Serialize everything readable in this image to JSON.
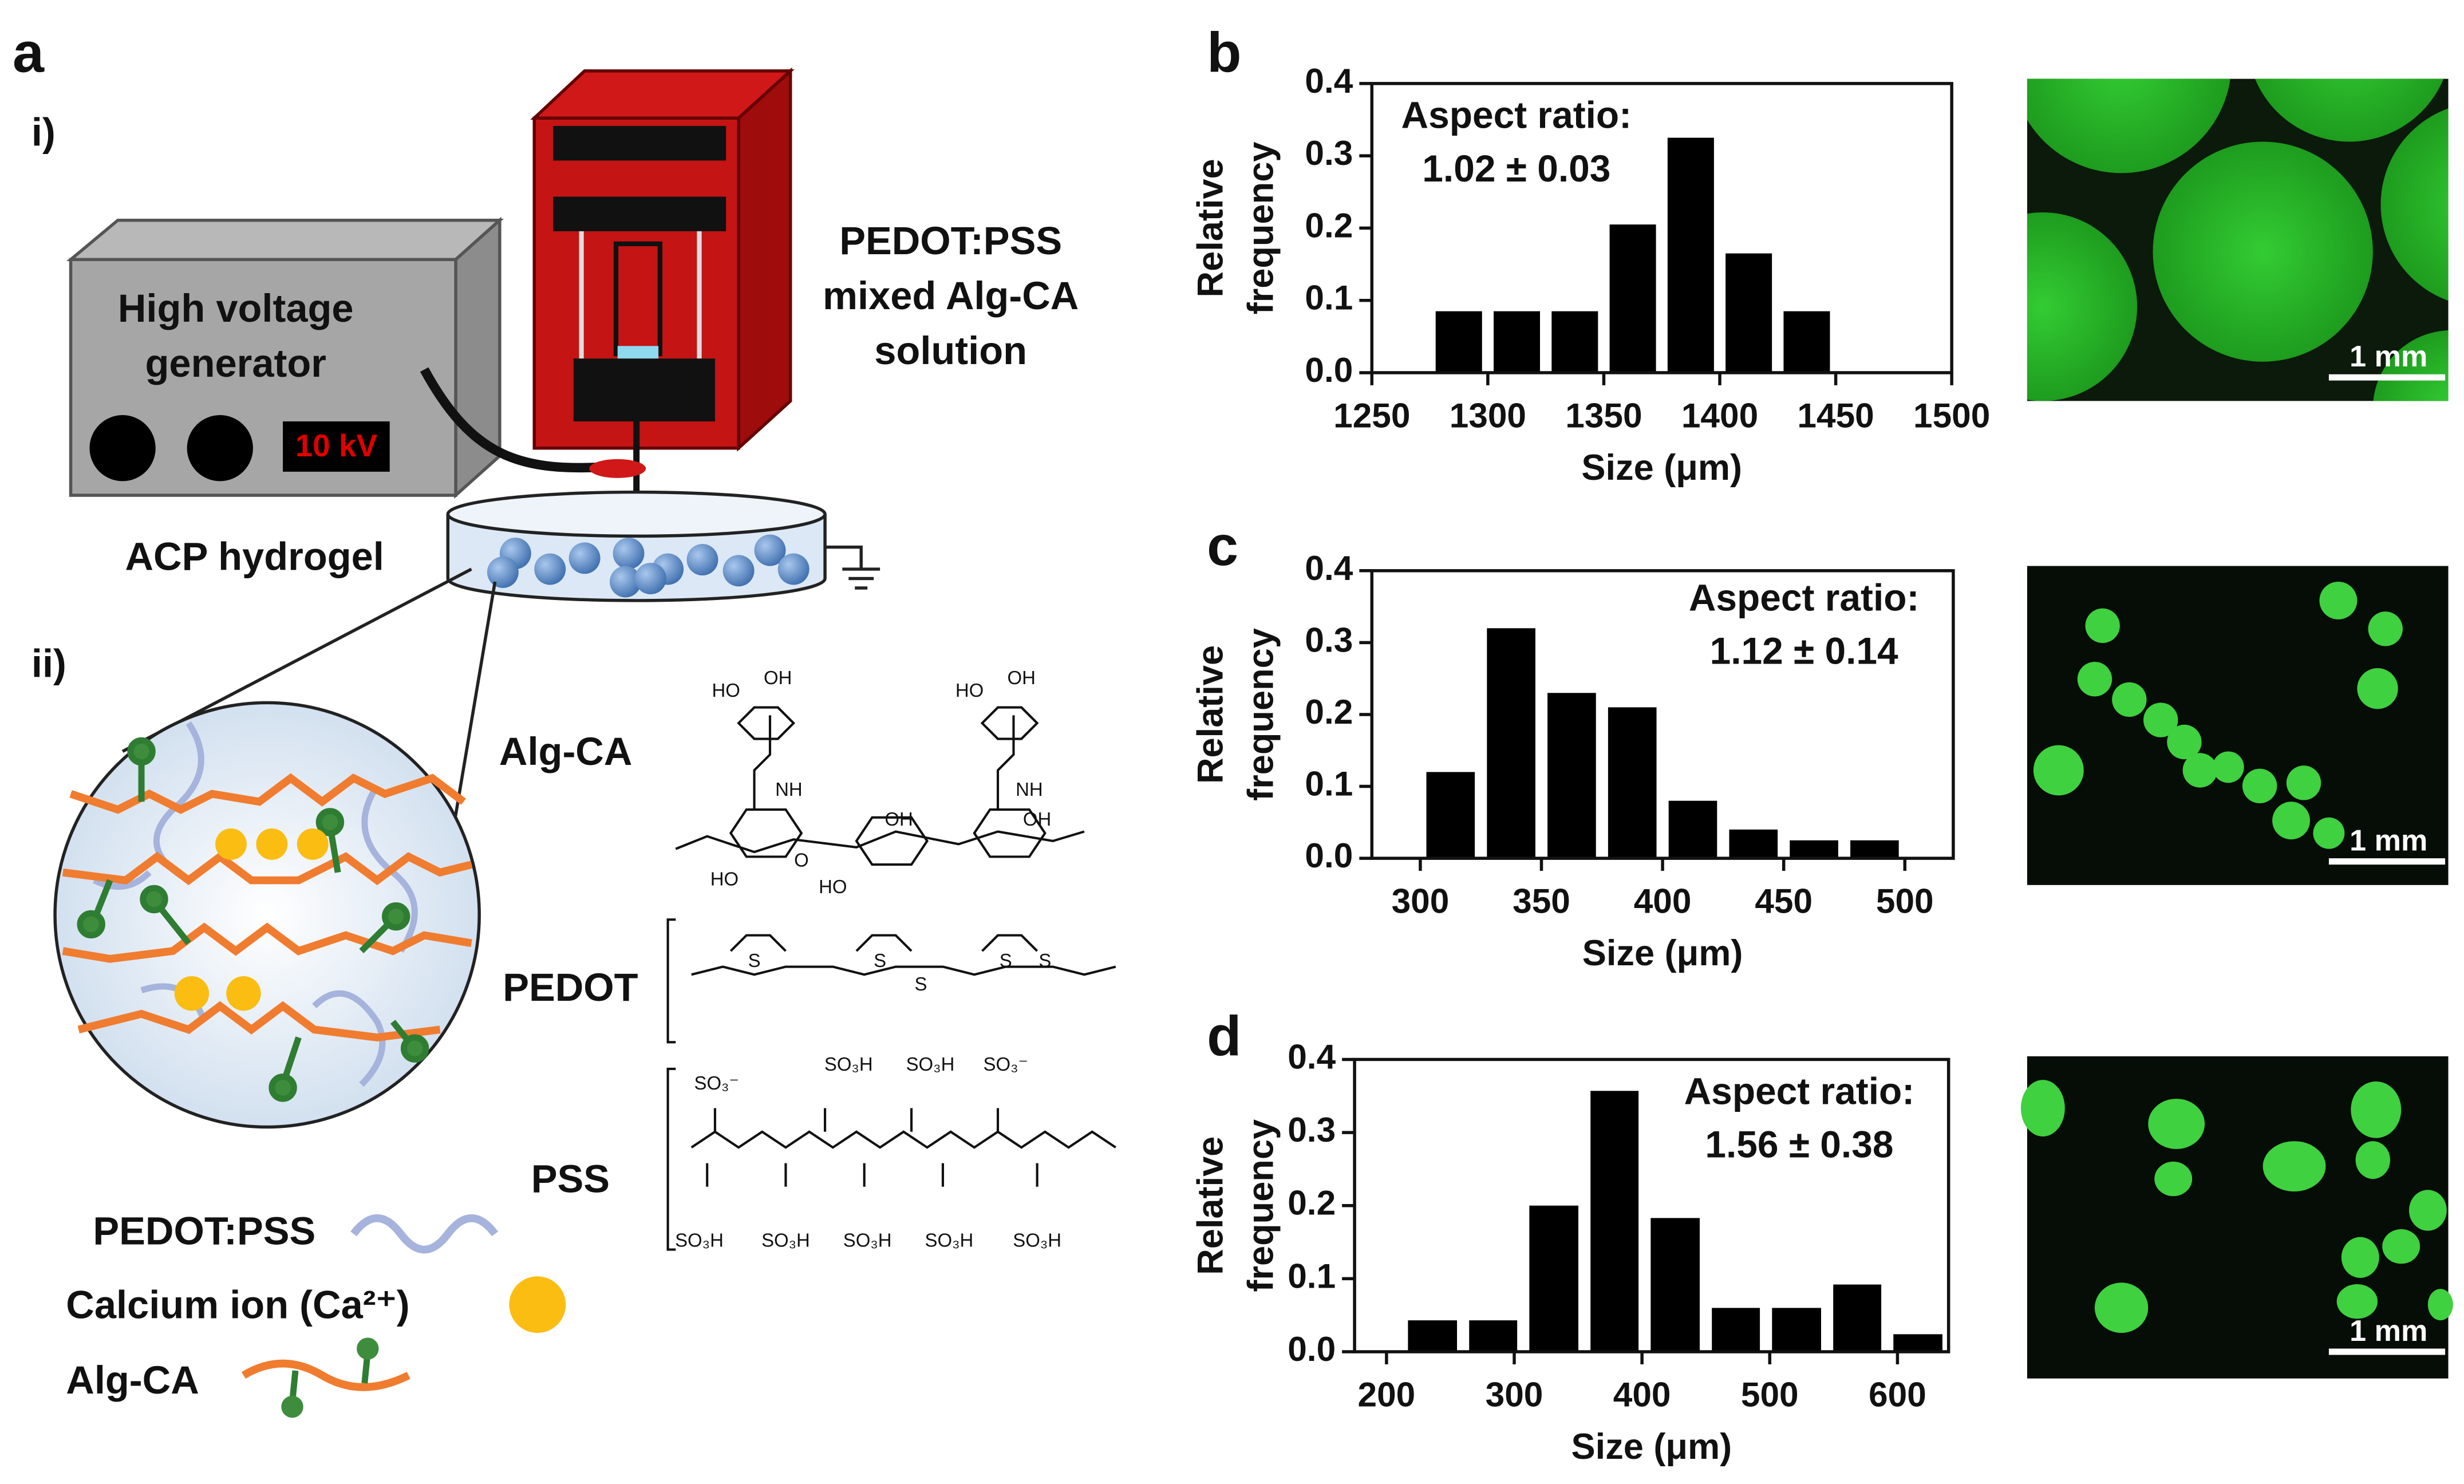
{
  "panel_a": {
    "label": "a",
    "step1": "i)",
    "step2": "ii)",
    "generator": [
      "High voltage",
      "generator"
    ],
    "voltage": "10 kV",
    "solution": [
      "PEDOT:PSS",
      "mixed Alg-CA",
      "solution"
    ],
    "hydrogel": "ACP hydrogel",
    "components": [
      "Alg-CA",
      "PEDOT",
      "PSS"
    ],
    "legend": [
      "PEDOT:PSS",
      "Calcium ion (Ca²⁺)",
      "Alg-CA"
    ],
    "chem_labels": [
      "HO",
      "OH",
      "NH",
      "HO",
      "OH",
      "NH",
      "O",
      "HO",
      "OH",
      "OH",
      "HO",
      "S",
      "S",
      "S",
      "S",
      "S",
      "SO₃⁻",
      "SO₃H",
      "SO₃H",
      "SO₃⁻",
      "SO₃H",
      "SO₃H",
      "SO₃H",
      "SO₃H",
      "SO₃H"
    ]
  },
  "chart_data": [
    {
      "type": "histogram",
      "panel_label": "b",
      "xlabel": "Size (μm)",
      "ylabel": [
        "Relative",
        "frequency"
      ],
      "annotation": [
        "Aspect ratio:",
        "1.02 ± 0.03"
      ],
      "bins": [
        1275,
        1300,
        1325,
        1350,
        1375,
        1400,
        1425,
        1450
      ],
      "values": [
        0.085,
        0.085,
        0.085,
        0.205,
        0.325,
        0.165,
        0.085
      ],
      "color": "#000000",
      "xlim": [
        1250,
        1500
      ],
      "xticks": [
        1250,
        1300,
        1350,
        1400,
        1450,
        1500
      ],
      "ylim": [
        0,
        0.4
      ],
      "yticks": [
        {
          "value": 0,
          "label": "0.0"
        },
        0.1,
        0.2,
        0.3,
        0.4
      ]
    },
    {
      "type": "histogram",
      "panel_label": "c",
      "xlabel": "Size (μm)",
      "ylabel": [
        "Relative",
        "frequency"
      ],
      "annotation": [
        "Aspect ratio:",
        "1.12 ± 0.14"
      ],
      "bins": [
        300,
        325,
        350,
        375,
        400,
        425,
        450,
        475,
        500
      ],
      "values": [
        0.12,
        0.32,
        0.23,
        0.21,
        0.08,
        0.04,
        0.025,
        0.025
      ],
      "color": "#000000",
      "xlim": [
        280,
        520
      ],
      "xticks": [
        300,
        350,
        400,
        450,
        500
      ],
      "ylim": [
        0,
        0.4
      ],
      "yticks": [
        {
          "value": 0,
          "label": "0.0"
        },
        0.1,
        0.2,
        0.3,
        0.4
      ]
    },
    {
      "type": "histogram",
      "panel_label": "d",
      "xlabel": "Size (μm)",
      "ylabel": [
        "Relative",
        "frequency"
      ],
      "annotation": [
        "Aspect ratio:",
        "1.56 ± 0.38"
      ],
      "bins": [
        212,
        260,
        307,
        355,
        402,
        450,
        497,
        545,
        592,
        640
      ],
      "values": [
        0.043,
        0.043,
        0.2,
        0.357,
        0.183,
        0.06,
        0.06,
        0.092,
        0.024
      ],
      "color": "#000000",
      "xlim": [
        175,
        640
      ],
      "xticks": [
        200,
        300,
        400,
        500,
        600
      ],
      "ylim": [
        0,
        0.4
      ],
      "yticks": [
        {
          "value": 0,
          "label": "0.0"
        },
        0.1,
        0.2,
        0.3,
        0.4
      ]
    }
  ],
  "micrographs": [
    {
      "scale_bar": "1 mm"
    },
    {
      "scale_bar": "1 mm"
    },
    {
      "scale_bar": "1 mm"
    }
  ]
}
